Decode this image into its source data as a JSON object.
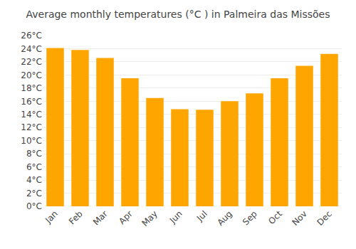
{
  "chart_data": {
    "type": "bar",
    "title": "Average monthly temperatures (°C ) in Palmeira das Missões",
    "categories": [
      "Jan",
      "Feb",
      "Mar",
      "Apr",
      "May",
      "Jun",
      "Jul",
      "Aug",
      "Sep",
      "Oct",
      "Nov",
      "Dec"
    ],
    "values": [
      24.1,
      23.8,
      22.6,
      19.5,
      16.5,
      14.8,
      14.7,
      16.0,
      17.2,
      19.5,
      21.4,
      23.2
    ],
    "color": "#FFA500",
    "ylim": [
      0,
      26
    ],
    "yticks": [
      {
        "value": 0,
        "label": "0°C"
      },
      {
        "value": 2,
        "label": "2°C"
      },
      {
        "value": 4,
        "label": "4°C"
      },
      {
        "value": 6,
        "label": "6°C"
      },
      {
        "value": 8,
        "label": "8°C"
      },
      {
        "value": 10,
        "label": "10°C"
      },
      {
        "value": 12,
        "label": "12°C"
      },
      {
        "value": 14,
        "label": "14°C"
      },
      {
        "value": 16,
        "label": "16°C"
      },
      {
        "value": 18,
        "label": "18°C"
      },
      {
        "value": 20,
        "label": "20°C"
      },
      {
        "value": 22,
        "label": "22°C"
      },
      {
        "value": 24,
        "label": "24°C"
      },
      {
        "value": 26,
        "label": "26°C"
      }
    ],
    "grid": true
  }
}
